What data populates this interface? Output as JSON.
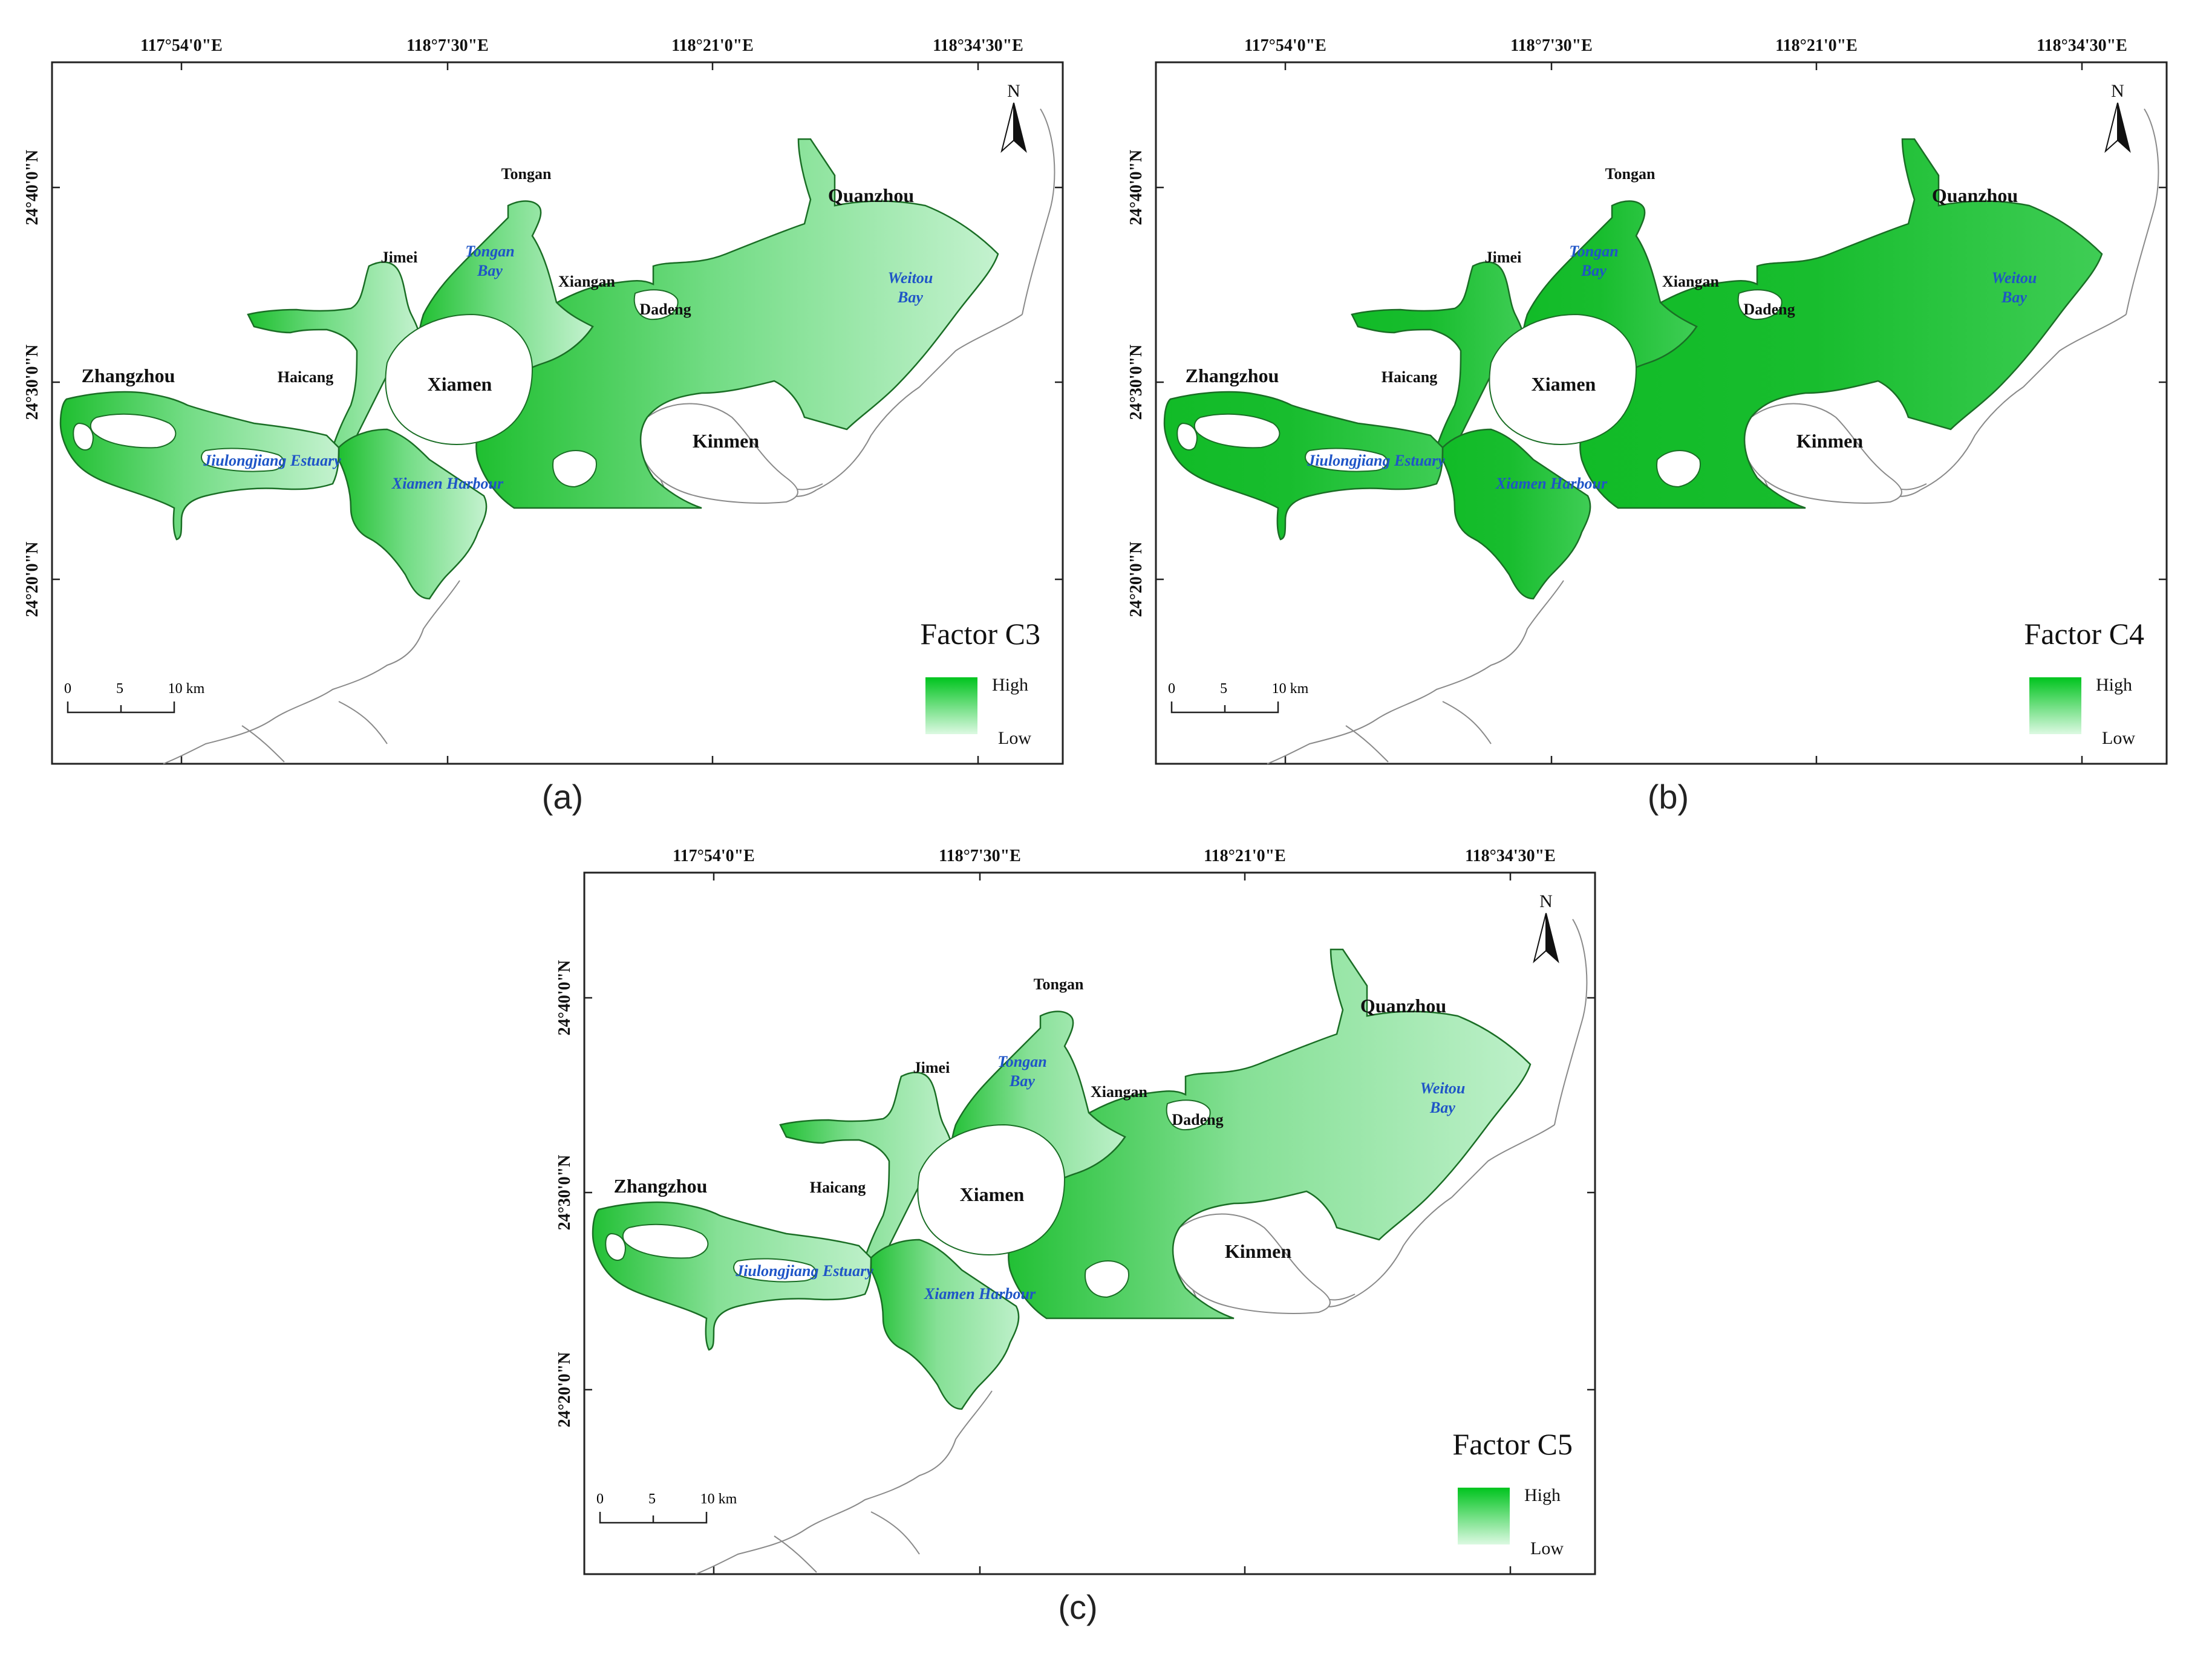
{
  "map_data": {
    "lon_ticks": [
      "117°54'0\"E",
      "118°7'30\"E",
      "118°21'0\"E",
      "118°34'30\"E"
    ],
    "lat_ticks": [
      "24°40'0\"N",
      "24°30'0\"N",
      "24°20'0\"N"
    ],
    "north_label": "N",
    "scalebar": {
      "labels": [
        "0",
        "5",
        "10 km"
      ]
    },
    "legend": {
      "high": "High",
      "low": "Low",
      "high_color": "#00c41e",
      "low_color": "#dcf9e2"
    },
    "places": {
      "tongan": "Tongan",
      "quanzhou": "Quanzhou",
      "jimei": "Jimei",
      "xiangan": "Xiangan",
      "dadeng": "Dadeng",
      "zhangzhou": "Zhangzhou",
      "haicang": "Haicang",
      "xiamen": "Xiamen",
      "kinmen": "Kinmen"
    },
    "waters": {
      "tongan_bay": [
        "Tongan",
        "Bay"
      ],
      "weitou_bay": [
        "Weitou",
        "Bay"
      ],
      "jiulongjiang_estuary": "Jiulongjiang Estuary",
      "xiamen_harbour": "Xiamen Harbour"
    },
    "water_label_color": "#1f55c7",
    "panels": [
      {
        "caption": "(a)",
        "factor": "Factor C3",
        "west_color": "#1fbf30",
        "east_color": "#c4f2cf",
        "mid_color": "#72dc84"
      },
      {
        "caption": "(b)",
        "factor": "Factor C4",
        "west_color": "#11bb27",
        "east_color": "#3fcd55",
        "mid_color": "#18bd2e"
      },
      {
        "caption": "(c)",
        "factor": "Factor C5",
        "west_color": "#22c035",
        "east_color": "#bdf0c9",
        "mid_color": "#86e096"
      }
    ]
  }
}
